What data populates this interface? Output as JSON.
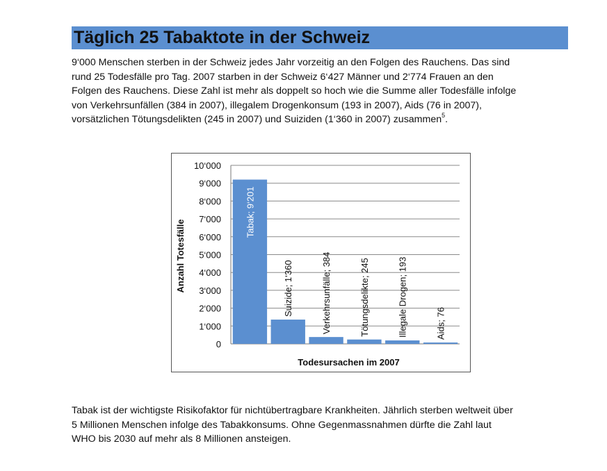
{
  "heading": {
    "title": "Täglich 25 Tabaktote in der Schweiz"
  },
  "intro": {
    "lines": [
      "9‘000 Menschen sterben in der Schweiz jedes Jahr vorzeitig an den Folgen des Rauchens. Das sind",
      "rund 25 Todesfälle pro Tag. 2007 starben in der Schweiz 6‘427 Männer und 2‘774 Frauen an den",
      "Folgen des Rauchens. Diese Zahl ist mehr als doppelt so hoch wie die Summe aller Todesfälle infolge",
      "von Verkehrsunfällen (384 in 2007), illegalem Drogenkonsum (193 in 2007), Aids (76 in 2007),",
      "vorsätzlichen Tötungsdelikten (245 in 2007) und Suiziden (1‘360 in 2007) zusammen"
    ],
    "footnote": "5",
    "end": "."
  },
  "outro": {
    "lines": [
      "Tabak ist der wichtigste Risikofaktor für nichtübertragbare Krankheiten. Jährlich sterben weltweit über",
      "5 Millionen Menschen infolge des Tabakkonsums. Ohne Gegenmassnahmen dürfte die Zahl laut",
      "WHO bis 2030 auf mehr als 8 Millionen ansteigen."
    ]
  },
  "chart_data": {
    "type": "bar",
    "categories": [
      "Tabak",
      "Suizide",
      "Verkehrsunfälle",
      "Tötungsdelikte",
      "Illegale Drogen",
      "Aids"
    ],
    "values": [
      9201,
      1360,
      384,
      245,
      193,
      76
    ],
    "data_labels": [
      "Tabak; 9‘201",
      "Suizide; 1‘360",
      "Verkehrsunfälle; 384",
      "Tötungsdelikte; 245",
      "Illegale Drogen; 193",
      "Aids; 76"
    ],
    "title": "",
    "xlabel": "Todesursachen im 2007",
    "ylabel": "Anzahl Totesfälle",
    "ylim": [
      0,
      10000
    ],
    "yticks": [
      0,
      1000,
      2000,
      3000,
      4000,
      5000,
      6000,
      7000,
      8000,
      9000,
      10000
    ],
    "ytick_labels": [
      "0",
      "1‘000",
      "2‘000",
      "3‘000",
      "4‘000",
      "5‘000",
      "6‘000",
      "7‘000",
      "8‘000",
      "9‘000",
      "10‘000"
    ],
    "grid": true,
    "legend": "none",
    "bar_color": "#5b8fd0"
  }
}
